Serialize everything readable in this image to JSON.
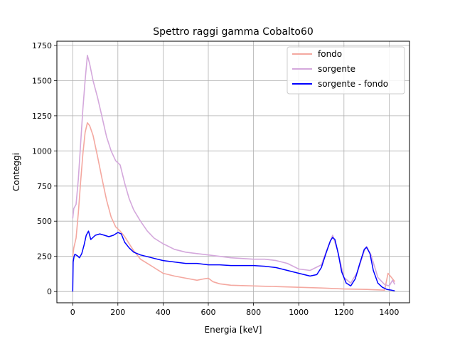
{
  "figure": {
    "title": "Spettro raggi gamma Cobalto60",
    "xlabel": "Energia [keV]",
    "ylabel": "Conteggi"
  },
  "chart_data": {
    "type": "line",
    "title": "Spettro raggi gamma Cobalto60",
    "xlabel": "Energia [keV]",
    "ylabel": "Conteggi",
    "xlim": [
      -70,
      1490
    ],
    "ylim": [
      -80,
      1780
    ],
    "xticks": [
      0,
      200,
      400,
      600,
      800,
      1000,
      1200,
      1400
    ],
    "yticks": [
      0,
      250,
      500,
      750,
      1000,
      1250,
      1500,
      1750
    ],
    "grid": true,
    "legend_position": "top-right",
    "series": [
      {
        "name": "fondo",
        "color": "#f4a8a0",
        "x": [
          0,
          5,
          15,
          25,
          35,
          45,
          55,
          65,
          75,
          90,
          110,
          130,
          150,
          170,
          190,
          210,
          230,
          250,
          270,
          300,
          330,
          360,
          400,
          450,
          500,
          550,
          580,
          600,
          620,
          650,
          700,
          800,
          900,
          1000,
          1100,
          1200,
          1300,
          1380,
          1395,
          1405,
          1415,
          1425
        ],
        "y": [
          250,
          310,
          380,
          560,
          780,
          980,
          1130,
          1200,
          1180,
          1110,
          960,
          800,
          650,
          530,
          460,
          430,
          390,
          340,
          290,
          230,
          200,
          170,
          130,
          110,
          95,
          80,
          90,
          95,
          70,
          55,
          45,
          40,
          35,
          30,
          25,
          18,
          15,
          10,
          130,
          110,
          90,
          70
        ]
      },
      {
        "name": "sorgente",
        "color": "#d4a8dc",
        "x": [
          0,
          5,
          15,
          25,
          35,
          45,
          55,
          65,
          75,
          90,
          110,
          130,
          150,
          170,
          190,
          210,
          230,
          250,
          270,
          300,
          330,
          360,
          400,
          450,
          500,
          550,
          600,
          650,
          700,
          750,
          800,
          850,
          900,
          950,
          1000,
          1050,
          1100,
          1130,
          1150,
          1170,
          1200,
          1230,
          1260,
          1290,
          1300,
          1320,
          1350,
          1380,
          1400,
          1415,
          1425
        ],
        "y": [
          520,
          590,
          620,
          800,
          1050,
          1300,
          1500,
          1680,
          1620,
          1500,
          1380,
          1240,
          1100,
          1000,
          930,
          900,
          770,
          660,
          580,
          500,
          430,
          380,
          340,
          300,
          280,
          270,
          260,
          250,
          240,
          235,
          230,
          230,
          220,
          200,
          160,
          150,
          190,
          320,
          400,
          300,
          100,
          60,
          140,
          290,
          320,
          260,
          100,
          50,
          40,
          80,
          50
        ]
      },
      {
        "name": "sorgente - fondo",
        "color": "#0000ff",
        "x": [
          0,
          2,
          6,
          10,
          20,
          30,
          40,
          50,
          60,
          70,
          80,
          100,
          120,
          140,
          160,
          180,
          200,
          215,
          230,
          250,
          270,
          300,
          350,
          400,
          450,
          500,
          550,
          600,
          650,
          700,
          750,
          800,
          850,
          900,
          950,
          1000,
          1050,
          1080,
          1100,
          1120,
          1140,
          1150,
          1160,
          1175,
          1190,
          1210,
          1230,
          1250,
          1270,
          1290,
          1300,
          1315,
          1330,
          1350,
          1370,
          1390,
          1410,
          1425
        ],
        "y": [
          0,
          210,
          250,
          265,
          255,
          240,
          270,
          330,
          400,
          430,
          370,
          400,
          410,
          400,
          390,
          400,
          420,
          410,
          350,
          310,
          280,
          260,
          240,
          220,
          210,
          200,
          200,
          190,
          190,
          185,
          185,
          185,
          180,
          170,
          150,
          130,
          110,
          120,
          170,
          270,
          360,
          385,
          370,
          270,
          140,
          60,
          40,
          90,
          200,
          300,
          315,
          270,
          150,
          60,
          30,
          15,
          10,
          5
        ]
      }
    ]
  }
}
